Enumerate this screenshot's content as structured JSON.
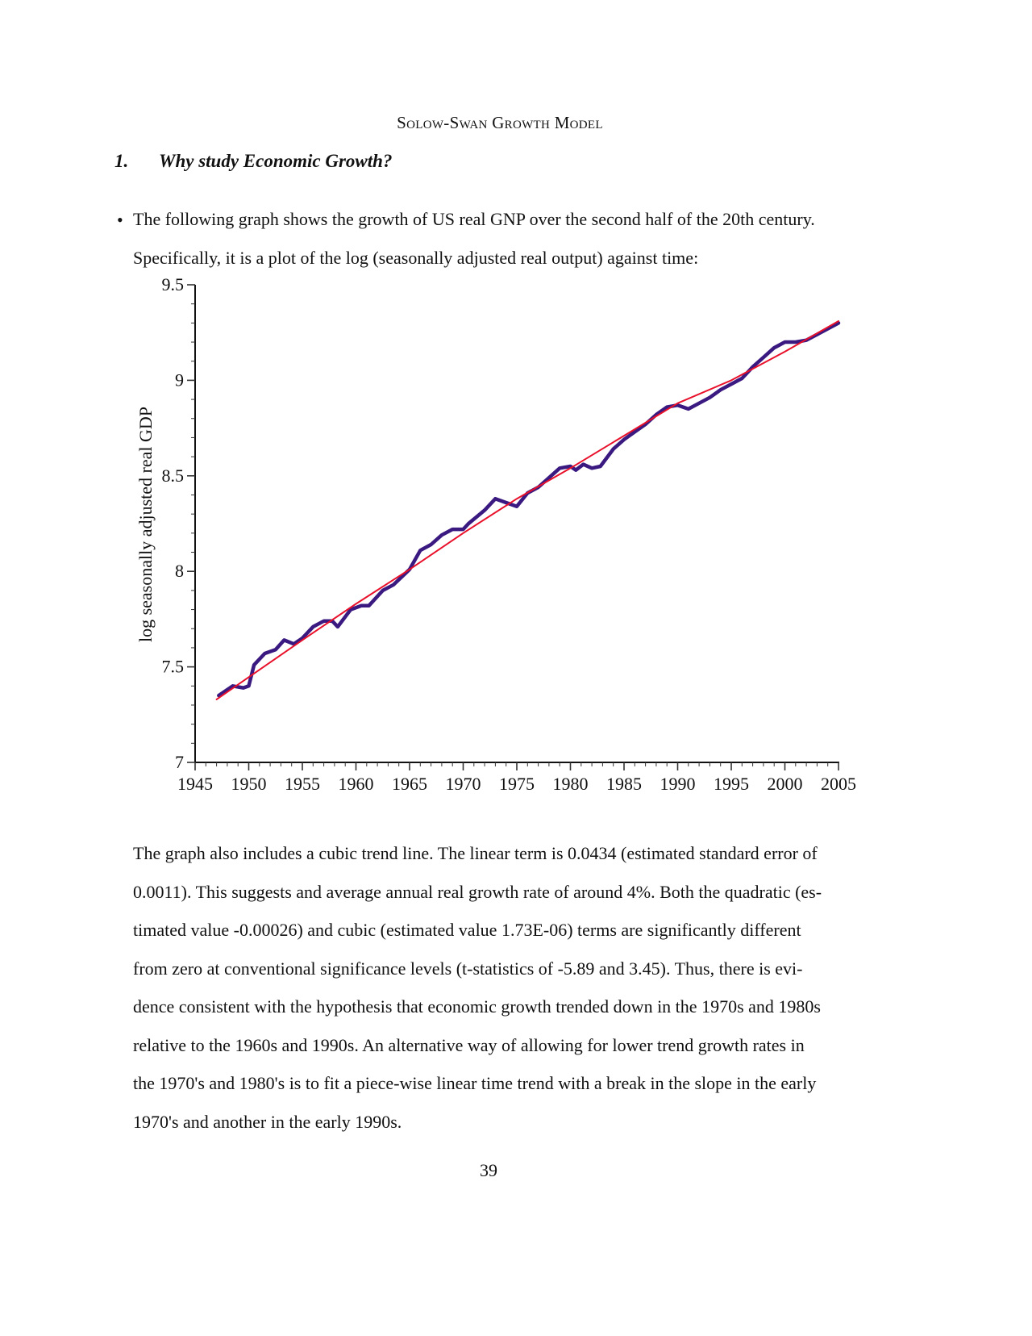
{
  "header": {
    "running_title": "Solow-Swan Growth Model"
  },
  "section": {
    "number": "1.",
    "title": "Why study Economic Growth?"
  },
  "intro": {
    "bullet": "•",
    "lines": [
      "The following graph shows the growth of US real GNP over the second half of the 20th century.",
      "Specifically, it is a plot of the log (seasonally adjusted real output) against time:"
    ]
  },
  "paragraph": {
    "lines": [
      "The graph also includes a cubic trend line. The linear term is 0.0434 (estimated standard error of",
      "0.0011). This suggests and average annual real growth rate of around 4%. Both the quadratic (es-",
      "timated value -0.00026) and cubic (estimated value 1.73E-06) terms are significantly different",
      "from zero at conventional significance levels (t-statistics of -5.89 and 3.45). Thus, there is evi-",
      "dence consistent with the hypothesis that economic growth trended down in the 1970s and 1980s",
      "relative to the 1960s and 1990s. An alternative way of allowing for lower trend growth rates in",
      "the 1970's and 1980's is to fit a piece-wise linear time trend with a break in the slope in the early",
      "1970's and another in the early 1990s."
    ]
  },
  "page_number": "39",
  "chart_data": {
    "type": "line",
    "title": "",
    "xlabel": "",
    "ylabel": "log seasonally adjusted real GDP",
    "xlim": [
      1945,
      2005
    ],
    "ylim": [
      7,
      9.5
    ],
    "x_ticks": [
      "1945",
      "1950",
      "1955",
      "1960",
      "1965",
      "1970",
      "1975",
      "1980",
      "1985",
      "1990",
      "1995",
      "2000",
      "2005"
    ],
    "y_ticks": [
      "7",
      "7.5",
      "8",
      "8.5",
      "9",
      "9.5"
    ],
    "grid": false,
    "series": [
      {
        "color": "#3a1a80",
        "x": [
          1947.2,
          1948.5,
          1949.5,
          1950,
          1950.5,
          1951.5,
          1952.5,
          1953.3,
          1954.2,
          1955,
          1956,
          1957,
          1957.8,
          1958.3,
          1959.5,
          1960.5,
          1961.2,
          1962.5,
          1963.5,
          1965,
          1966,
          1967,
          1968,
          1969,
          1970,
          1970.5,
          1972,
          1973,
          1974,
          1975,
          1976,
          1977,
          1978,
          1979,
          1980,
          1980.5,
          1981.2,
          1982,
          1982.8,
          1984,
          1985,
          1986,
          1987,
          1988,
          1989,
          1990,
          1991,
          1992,
          1993,
          1994,
          1995,
          1996,
          1997,
          1998,
          1999,
          2000,
          2001,
          2002,
          2003,
          2004,
          2005
        ],
        "y": [
          7.35,
          7.4,
          7.39,
          7.4,
          7.51,
          7.57,
          7.59,
          7.64,
          7.62,
          7.65,
          7.71,
          7.74,
          7.74,
          7.71,
          7.8,
          7.82,
          7.82,
          7.9,
          7.93,
          8.01,
          8.11,
          8.14,
          8.19,
          8.22,
          8.22,
          8.25,
          8.32,
          8.38,
          8.36,
          8.34,
          8.41,
          8.44,
          8.49,
          8.54,
          8.55,
          8.53,
          8.56,
          8.54,
          8.55,
          8.64,
          8.69,
          8.73,
          8.77,
          8.82,
          8.86,
          8.87,
          8.85,
          8.88,
          8.91,
          8.95,
          8.98,
          9.01,
          9.07,
          9.12,
          9.17,
          9.2,
          9.2,
          9.21,
          9.24,
          9.27,
          9.3
        ]
      },
      {
        "color": "#e8102a",
        "x": [
          1947,
          1955,
          1960,
          1965,
          1970,
          1975,
          1980,
          1985,
          1990,
          1995,
          2000,
          2005
        ],
        "y": [
          7.33,
          7.64,
          7.83,
          8.01,
          8.2,
          8.38,
          8.54,
          8.71,
          8.88,
          9.0,
          9.15,
          9.31
        ]
      }
    ]
  }
}
